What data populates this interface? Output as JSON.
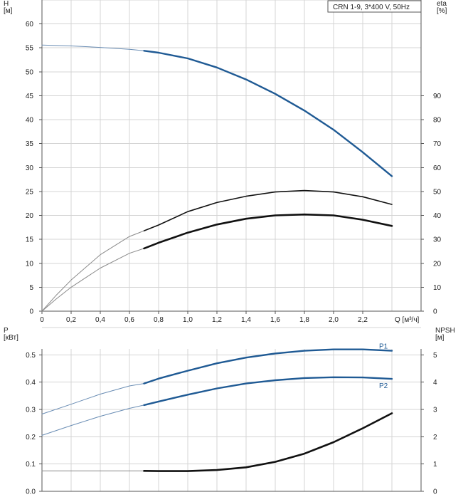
{
  "title_box": "CRN 1-9, 3*400 V, 50Hz",
  "colors": {
    "blue": "#1f5a94",
    "black": "#111111",
    "grey": "#8a8a8a",
    "grid": "#d4d4d4"
  },
  "chart_data": [
    {
      "type": "line",
      "panel": "head-efficiency",
      "title": "CRN 1-9, 3*400 V, 50Hz",
      "xlabel": "Q [м³/ч]",
      "ylabel_left": "H\n[м]",
      "ylabel_right": "eta\n[%]",
      "xlim": [
        0,
        2.6
      ],
      "ylim_left": [
        0,
        65
      ],
      "ylim_right": [
        0,
        130
      ],
      "x_ticks": [
        "0",
        "0,2",
        "0,4",
        "0,6",
        "0,8",
        "1,0",
        "1,2",
        "1,4",
        "1,6",
        "1,8",
        "2,0",
        "2,2"
      ],
      "y_ticks_left": [
        "0",
        "5",
        "10",
        "15",
        "20",
        "25",
        "30",
        "35",
        "40",
        "45",
        "50",
        "55",
        "60"
      ],
      "y_ticks_right": [
        "0",
        "10",
        "20",
        "30",
        "40",
        "50",
        "60",
        "70",
        "80",
        "90"
      ],
      "grid": true,
      "series": [
        {
          "axis": "left",
          "color": "#1f5a94",
          "x": [
            0,
            0.2,
            0.4,
            0.6,
            0.7,
            0.8,
            1.0,
            1.2,
            1.4,
            1.6,
            1.8,
            2.0,
            2.2,
            2.4
          ],
          "y": [
            55.6,
            55.4,
            55.1,
            54.7,
            54.4,
            54.0,
            52.8,
            50.9,
            48.4,
            45.4,
            41.9,
            37.9,
            33.2,
            28.2
          ],
          "solid_from": 0.7
        },
        {
          "axis": "left",
          "color": "#111111",
          "x": [
            0,
            0.1,
            0.2,
            0.4,
            0.6,
            0.7,
            0.8,
            1.0,
            1.2,
            1.4,
            1.6,
            1.8,
            2.0,
            2.2,
            2.4
          ],
          "y": [
            0,
            3.4,
            6.5,
            11.8,
            15.6,
            16.8,
            18.0,
            20.8,
            22.7,
            24.0,
            24.9,
            25.2,
            24.9,
            23.9,
            22.3
          ],
          "solid_from": 0.7
        },
        {
          "axis": "left",
          "color": "#111111",
          "x": [
            0,
            0.1,
            0.2,
            0.4,
            0.6,
            0.7,
            0.8,
            1.0,
            1.2,
            1.4,
            1.6,
            1.8,
            2.0,
            2.2,
            2.4
          ],
          "y": [
            0,
            2.6,
            5.0,
            9.0,
            12.1,
            13.1,
            14.3,
            16.4,
            18.1,
            19.3,
            20.0,
            20.2,
            20.0,
            19.1,
            17.8
          ],
          "solid_from": 0.7,
          "thick": true
        }
      ]
    },
    {
      "type": "line",
      "panel": "power-npsh",
      "xlabel": "",
      "ylabel_left": "P\n[кВт]",
      "ylabel_right": "NPSH\n[м]",
      "xlim": [
        0,
        2.6
      ],
      "ylim_left": [
        0,
        0.6
      ],
      "ylim_right": [
        0,
        6
      ],
      "y_ticks_left": [
        "0.0",
        "0.1",
        "0.2",
        "0.3",
        "0.4",
        "0.5"
      ],
      "y_ticks_right": [
        "0",
        "1",
        "2",
        "3",
        "4",
        "5"
      ],
      "grid": true,
      "series": [
        {
          "name": "P1",
          "axis": "left",
          "color": "#1f5a94",
          "x": [
            0,
            0.2,
            0.4,
            0.6,
            0.7,
            0.8,
            1.0,
            1.2,
            1.4,
            1.6,
            1.8,
            2.0,
            2.2,
            2.4
          ],
          "y": [
            0.283,
            0.319,
            0.356,
            0.386,
            0.395,
            0.413,
            0.442,
            0.469,
            0.49,
            0.505,
            0.515,
            0.52,
            0.52,
            0.515
          ],
          "solid_from": 0.7
        },
        {
          "name": "P2",
          "axis": "left",
          "color": "#1f5a94",
          "x": [
            0,
            0.2,
            0.4,
            0.6,
            0.7,
            0.8,
            1.0,
            1.2,
            1.4,
            1.6,
            1.8,
            2.0,
            2.2,
            2.4
          ],
          "y": [
            0.205,
            0.241,
            0.275,
            0.304,
            0.316,
            0.329,
            0.354,
            0.377,
            0.395,
            0.407,
            0.415,
            0.418,
            0.417,
            0.412
          ],
          "solid_from": 0.7
        },
        {
          "axis": "right",
          "color": "#111111",
          "x": [
            0,
            0.2,
            0.4,
            0.6,
            0.7,
            0.8,
            1.0,
            1.2,
            1.4,
            1.6,
            1.8,
            2.0,
            2.2,
            2.4
          ],
          "y": [
            0.75,
            0.75,
            0.75,
            0.75,
            0.75,
            0.74,
            0.74,
            0.78,
            0.88,
            1.08,
            1.38,
            1.8,
            2.31,
            2.86
          ],
          "solid_from": 0.7,
          "thick": true
        }
      ]
    }
  ]
}
